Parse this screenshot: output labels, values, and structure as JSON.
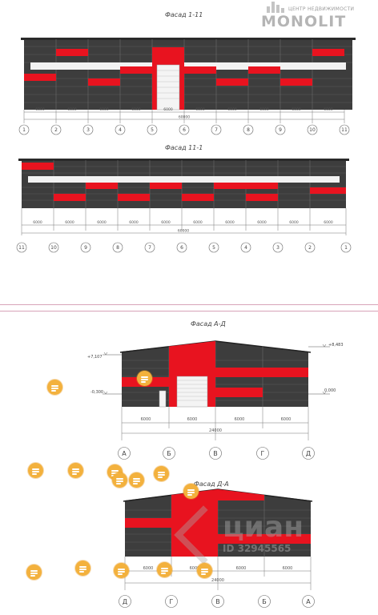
{
  "logo": {
    "tagline": "ЦЕНТР НЕДВИЖИМОСТИ",
    "name": "MONOLIT"
  },
  "facade_1": {
    "title": "Фасад 1-11",
    "dimension": "6000",
    "total": "60000",
    "axes": [
      "1",
      "2",
      "3",
      "4",
      "5",
      "6",
      "7",
      "8",
      "9",
      "10",
      "11"
    ]
  },
  "facade_2": {
    "title": "Фасад 11-1",
    "dimension": "6000",
    "total": "60000",
    "axes": [
      "11",
      "10",
      "9",
      "8",
      "7",
      "6",
      "5",
      "4",
      "3",
      "2",
      "1"
    ]
  },
  "facade_3": {
    "title": "Фасад А-Д",
    "dimension": "6000",
    "total": "24000",
    "elev_left_top": "+7,107",
    "elev_left_mid": "-0,300",
    "elev_right_top": "+8,483",
    "elev_right_mid": "0,000",
    "axes": [
      "А",
      "Б",
      "В",
      "Г",
      "Д"
    ]
  },
  "facade_4": {
    "title": "Фасад Д-А",
    "dimension": "6000",
    "total": "24000",
    "axes": [
      "Д",
      "Г",
      "В",
      "Б",
      "А"
    ]
  },
  "watermark": {
    "text": "циан",
    "id": "ID 32945565"
  },
  "colors": {
    "wall": "#3d3d3d",
    "accent": "#e8131f",
    "seam": "#5a5a5a",
    "divider": "#d7a3b8"
  }
}
